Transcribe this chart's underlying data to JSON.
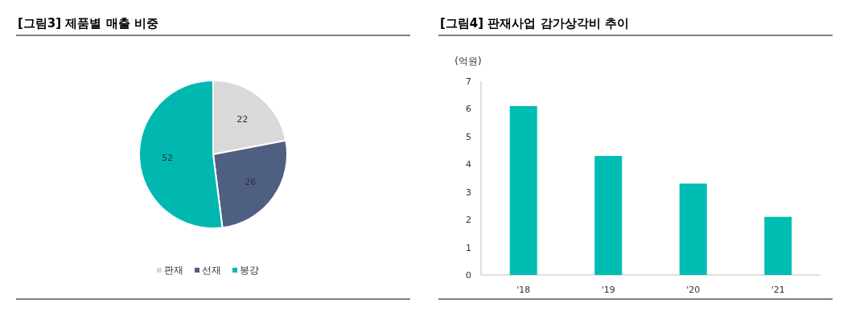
{
  "chart_data": [
    {
      "type": "pie",
      "title": "[그림3] 제품별 매출 비중",
      "categories": [
        "판재",
        "선재",
        "봉강"
      ],
      "values": [
        22,
        26,
        52
      ],
      "colors": [
        "#d9d9d9",
        "#4f5f82",
        "#00b8b0"
      ],
      "data_labels": true,
      "legend": "bottom"
    },
    {
      "type": "bar",
      "title": "[그림4] 판재사업 감가상각비 추이",
      "ylabel": "(억원)",
      "categories": [
        "'18",
        "'19",
        "'20",
        "'21"
      ],
      "values": [
        6.1,
        4.3,
        3.3,
        2.1
      ],
      "color": "#00bdb4",
      "ylim": [
        0,
        7
      ],
      "yticks": [
        0,
        1,
        2,
        3,
        4,
        5,
        6,
        7
      ]
    }
  ]
}
